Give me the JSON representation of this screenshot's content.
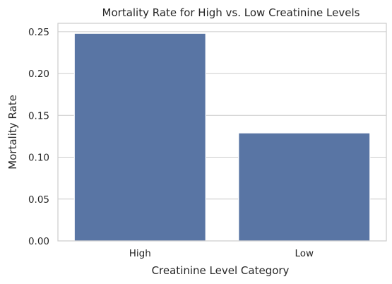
{
  "chart_data": {
    "type": "bar",
    "title": "Mortality Rate for High vs. Low Creatinine Levels",
    "xlabel": "Creatinine Level Category",
    "ylabel": "Mortality Rate",
    "categories": [
      "High",
      "Low"
    ],
    "values": [
      0.248,
      0.129
    ],
    "ylim": [
      0,
      0.26
    ],
    "yticks": [
      0.0,
      0.05,
      0.1,
      0.15,
      0.2,
      0.25
    ],
    "ytick_labels": [
      "0.00",
      "0.05",
      "0.10",
      "0.15",
      "0.20",
      "0.25"
    ],
    "grid": true,
    "bar_color": "#5975a4"
  }
}
